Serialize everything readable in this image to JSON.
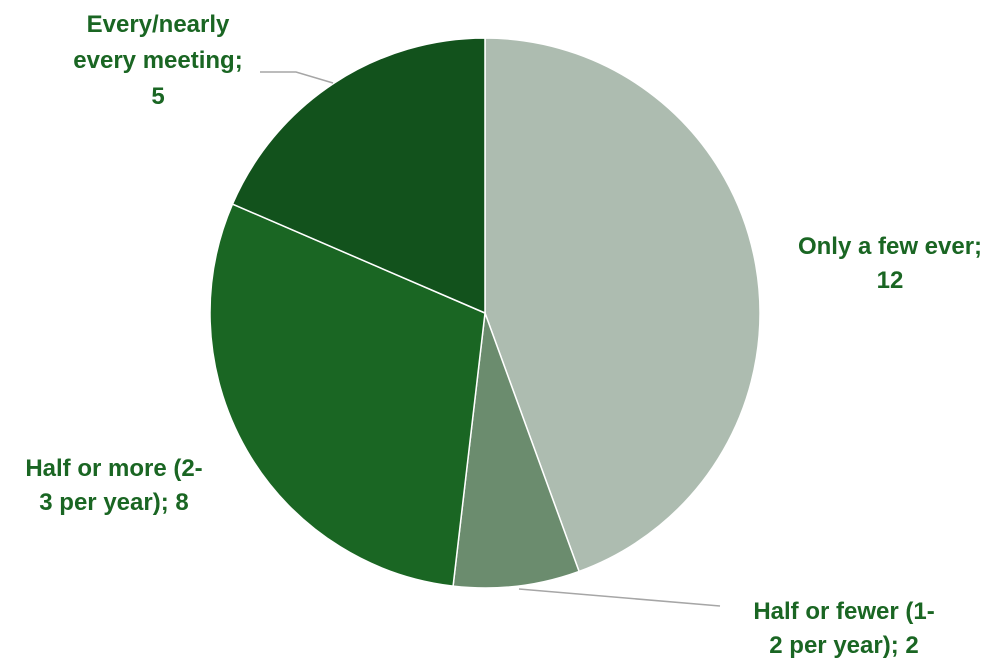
{
  "chart_data": {
    "type": "pie",
    "title": "",
    "label_color": "#1a6623",
    "slices": [
      {
        "label": "Only a few ever",
        "value": 12,
        "color": "#adbcb0",
        "label_lines": [
          "Only a few ever;",
          "12"
        ]
      },
      {
        "label": "Half or fewer (1-2 per year)",
        "value": 2,
        "color": "#6b8c6e",
        "label_lines": [
          "Half or fewer (1-",
          "2 per year); 2"
        ]
      },
      {
        "label": "Half or more (2-3 per year)",
        "value": 8,
        "color": "#1a6623",
        "label_lines": [
          "Half or more (2-",
          "3 per year); 8"
        ]
      },
      {
        "label": "Every/nearly every meeting",
        "value": 5,
        "color": "#12521c",
        "label_lines": [
          "Every/nearly",
          "every meeting;",
          "5"
        ]
      }
    ]
  }
}
